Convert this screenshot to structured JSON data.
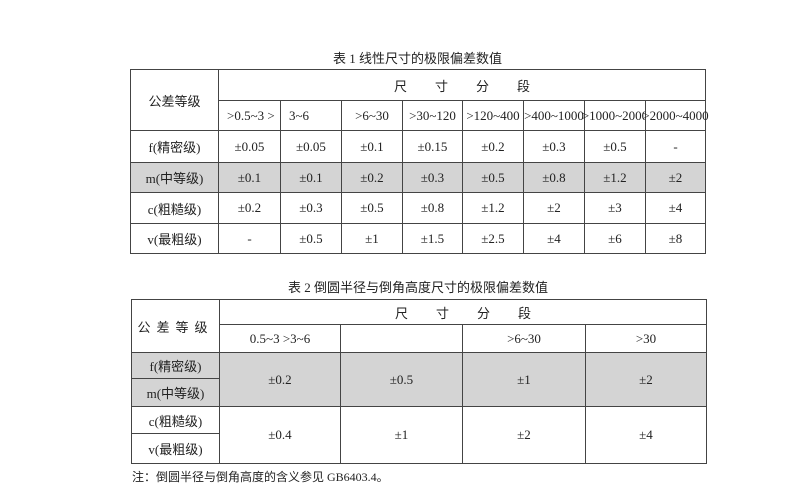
{
  "table1": {
    "title": "表 1  线性尺寸的极限偏差数值",
    "row_header": "公差等级",
    "group_header": "尺寸分段",
    "columns": [
      ">0.5~3 >",
      "3~6",
      ">6~30",
      ">30~120",
      ">120~400",
      ">400~1000",
      ">1000~2000",
      ">2000~4000"
    ],
    "rows": [
      {
        "grade": "f(精密级)",
        "values": [
          "±0.05",
          "±0.05",
          "±0.1",
          "±0.15",
          "±0.2",
          "±0.3",
          "±0.5",
          "-"
        ],
        "shaded": false
      },
      {
        "grade": "m(中等级)",
        "values": [
          "±0.1",
          "±0.1",
          "±0.2",
          "±0.3",
          "±0.5",
          "±0.8",
          "±1.2",
          "±2"
        ],
        "shaded": true
      },
      {
        "grade": "c(粗糙级)",
        "values": [
          "±0.2",
          "±0.3",
          "±0.5",
          "±0.8",
          "±1.2",
          "±2",
          "±3",
          "±4"
        ],
        "shaded": false
      },
      {
        "grade": "v(最粗级)",
        "values": [
          "-",
          "±0.5",
          "±1",
          "±1.5",
          "±2.5",
          "±4",
          "±6",
          "±8"
        ],
        "shaded": false
      }
    ]
  },
  "table2": {
    "title": "表 2  倒圆半径与倒角高度尺寸的极限偏差数值",
    "row_header": "公差等级",
    "group_header": "尺寸分段",
    "columns": [
      "0.5~3 >3~6",
      "",
      ">6~30",
      ">30"
    ],
    "grades": [
      "f(精密级)",
      "m(中等级)",
      "c(粗糙级)",
      "v(最粗级)"
    ],
    "fm_values": [
      "±0.2",
      "±0.5",
      "±1",
      "±2"
    ],
    "cv_values": [
      "±0.4",
      "±1",
      "±2",
      "±4"
    ],
    "note": "注：倒圆半径与倒角高度的含义参见 GB6403.4。"
  },
  "colors": {
    "shade": "#d4d4d4",
    "border": "#444444"
  }
}
